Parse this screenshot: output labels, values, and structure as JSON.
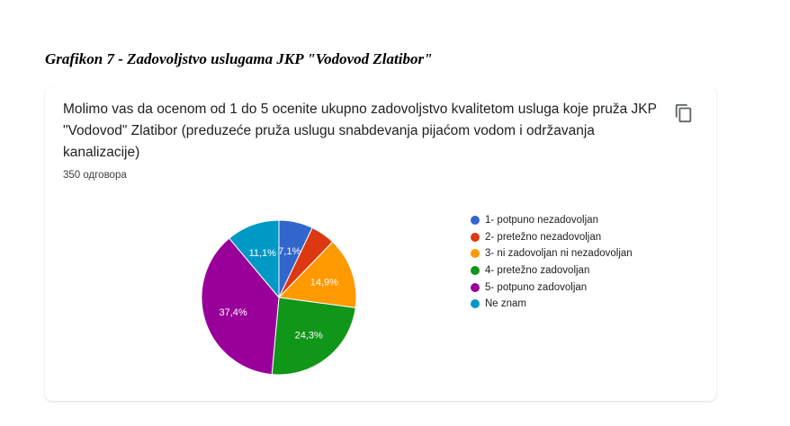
{
  "caption": "Grafikon 7 - Zadovoljstvo uslugama JKP \"Vodovod Zlatibor\"",
  "card": {
    "question": "Molimo vas da ocenom od 1 do 5 ocenite ukupno zadovoljstvo kvalitetom usluga koje pruža JKP \"Vodovod\" Zlatibor (preduzeće pruža uslugu snabdevanja pijaćom vodom i održavanja kanalizacije)",
    "response_count": "350 одговора",
    "copy_icon": "copy-icon"
  },
  "chart_data": {
    "type": "pie",
    "categories": [
      "1- potpuno nezadovoljan",
      "2- pretežno nezadovoljan",
      "3- ni zadovoljan ni nezadovoljan",
      "4- pretežno zadovoljan",
      "5- potpuno zadovoljan",
      "Ne znam"
    ],
    "values": [
      7.1,
      5.1,
      14.9,
      24.3,
      37.4,
      11.1
    ],
    "labels": [
      "7,1%",
      "",
      "14,9%",
      "24,3%",
      "37,4%",
      "11,1%"
    ],
    "colors": [
      "#3366cc",
      "#dc3912",
      "#ff9900",
      "#109618",
      "#990099",
      "#0099c6"
    ],
    "legend_position": "right"
  }
}
